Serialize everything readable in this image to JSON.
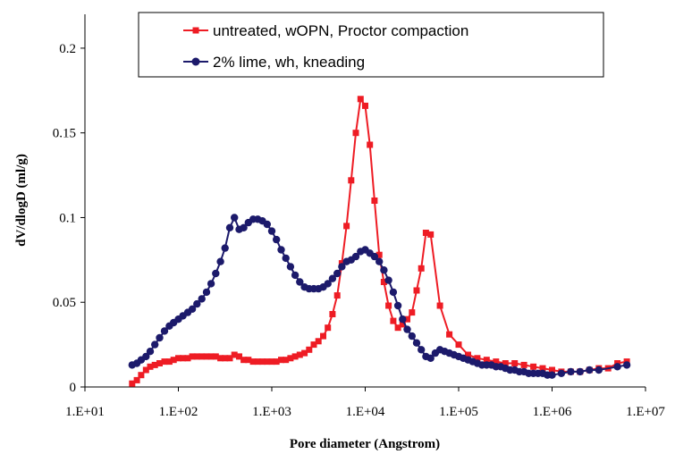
{
  "chart_data": {
    "type": "line",
    "title": "",
    "xlabel": "Pore diameter (Angstrom)",
    "ylabel": "dV/dlogD (ml/g)",
    "x_scale": "log",
    "xlim": [
      10,
      10000000
    ],
    "ylim": [
      0,
      0.22
    ],
    "x_ticks": [
      "1.E+01",
      "1.E+02",
      "1.E+03",
      "1.E+04",
      "1.E+05",
      "1.E+06",
      "1.E+07"
    ],
    "y_ticks": [
      "0",
      "0.05",
      "0.1",
      "0.15",
      "0.2"
    ],
    "y_tick_values": [
      0,
      0.05,
      0.1,
      0.15,
      0.2
    ],
    "grid": false,
    "legend_position": "top-right",
    "series": [
      {
        "name": "untreated, wOPN, Proctor compaction",
        "color": "#ee1c24",
        "marker": "square",
        "points": [
          [
            32,
            0.002
          ],
          [
            36,
            0.004
          ],
          [
            40,
            0.007
          ],
          [
            45,
            0.01
          ],
          [
            50,
            0.012
          ],
          [
            56,
            0.013
          ],
          [
            63,
            0.014
          ],
          [
            71,
            0.015
          ],
          [
            80,
            0.015
          ],
          [
            89,
            0.016
          ],
          [
            100,
            0.017
          ],
          [
            112,
            0.017
          ],
          [
            126,
            0.017
          ],
          [
            141,
            0.018
          ],
          [
            158,
            0.018
          ],
          [
            178,
            0.018
          ],
          [
            200,
            0.018
          ],
          [
            224,
            0.018
          ],
          [
            251,
            0.018
          ],
          [
            282,
            0.017
          ],
          [
            316,
            0.017
          ],
          [
            355,
            0.017
          ],
          [
            398,
            0.019
          ],
          [
            447,
            0.018
          ],
          [
            501,
            0.016
          ],
          [
            562,
            0.016
          ],
          [
            631,
            0.015
          ],
          [
            708,
            0.015
          ],
          [
            794,
            0.015
          ],
          [
            891,
            0.015
          ],
          [
            1000,
            0.015
          ],
          [
            1122,
            0.015
          ],
          [
            1259,
            0.016
          ],
          [
            1413,
            0.016
          ],
          [
            1585,
            0.017
          ],
          [
            1778,
            0.018
          ],
          [
            1995,
            0.019
          ],
          [
            2239,
            0.02
          ],
          [
            2512,
            0.022
          ],
          [
            2818,
            0.025
          ],
          [
            3162,
            0.027
          ],
          [
            3548,
            0.03
          ],
          [
            3981,
            0.035
          ],
          [
            4467,
            0.043
          ],
          [
            5012,
            0.054
          ],
          [
            5623,
            0.073
          ],
          [
            6310,
            0.095
          ],
          [
            7079,
            0.122
          ],
          [
            7943,
            0.15
          ],
          [
            8913,
            0.17
          ],
          [
            10000,
            0.166
          ],
          [
            11220,
            0.143
          ],
          [
            12589,
            0.11
          ],
          [
            14125,
            0.078
          ],
          [
            15849,
            0.062
          ],
          [
            17783,
            0.048
          ],
          [
            19953,
            0.039
          ],
          [
            22387,
            0.035
          ],
          [
            25119,
            0.037
          ],
          [
            28184,
            0.04
          ],
          [
            31623,
            0.044
          ],
          [
            35481,
            0.057
          ],
          [
            39811,
            0.07
          ],
          [
            44668,
            0.091
          ],
          [
            50119,
            0.09
          ],
          [
            63096,
            0.048
          ],
          [
            79433,
            0.031
          ],
          [
            100000,
            0.025
          ],
          [
            125893,
            0.019
          ],
          [
            158489,
            0.017
          ],
          [
            199526,
            0.016
          ],
          [
            251189,
            0.015
          ],
          [
            316228,
            0.014
          ],
          [
            398107,
            0.014
          ],
          [
            501187,
            0.013
          ],
          [
            630957,
            0.012
          ],
          [
            794328,
            0.011
          ],
          [
            1000000,
            0.01
          ],
          [
            1258925,
            0.009
          ],
          [
            1584893,
            0.009
          ],
          [
            1995262,
            0.009
          ],
          [
            2511886,
            0.01
          ],
          [
            3162278,
            0.011
          ],
          [
            3981072,
            0.011
          ],
          [
            5011872,
            0.014
          ],
          [
            6309573,
            0.015
          ]
        ]
      },
      {
        "name": "2% lime, wh, kneading",
        "color": "#1c1a6b",
        "marker": "circle",
        "points": [
          [
            32,
            0.013
          ],
          [
            36,
            0.014
          ],
          [
            40,
            0.016
          ],
          [
            45,
            0.018
          ],
          [
            50,
            0.021
          ],
          [
            56,
            0.025
          ],
          [
            63,
            0.029
          ],
          [
            71,
            0.033
          ],
          [
            80,
            0.036
          ],
          [
            89,
            0.038
          ],
          [
            100,
            0.04
          ],
          [
            112,
            0.042
          ],
          [
            126,
            0.044
          ],
          [
            141,
            0.046
          ],
          [
            158,
            0.049
          ],
          [
            178,
            0.052
          ],
          [
            200,
            0.056
          ],
          [
            224,
            0.061
          ],
          [
            251,
            0.067
          ],
          [
            282,
            0.074
          ],
          [
            316,
            0.082
          ],
          [
            355,
            0.094
          ],
          [
            398,
            0.1
          ],
          [
            447,
            0.093
          ],
          [
            501,
            0.094
          ],
          [
            562,
            0.097
          ],
          [
            631,
            0.099
          ],
          [
            708,
            0.099
          ],
          [
            794,
            0.098
          ],
          [
            891,
            0.096
          ],
          [
            1000,
            0.092
          ],
          [
            1122,
            0.087
          ],
          [
            1259,
            0.081
          ],
          [
            1413,
            0.076
          ],
          [
            1585,
            0.071
          ],
          [
            1778,
            0.066
          ],
          [
            1995,
            0.062
          ],
          [
            2239,
            0.059
          ],
          [
            2512,
            0.058
          ],
          [
            2818,
            0.058
          ],
          [
            3162,
            0.058
          ],
          [
            3548,
            0.059
          ],
          [
            3981,
            0.061
          ],
          [
            4467,
            0.064
          ],
          [
            5012,
            0.067
          ],
          [
            5623,
            0.071
          ],
          [
            6310,
            0.074
          ],
          [
            7079,
            0.075
          ],
          [
            7943,
            0.077
          ],
          [
            8913,
            0.08
          ],
          [
            10000,
            0.081
          ],
          [
            11220,
            0.079
          ],
          [
            12589,
            0.077
          ],
          [
            14125,
            0.074
          ],
          [
            15849,
            0.069
          ],
          [
            17783,
            0.063
          ],
          [
            19953,
            0.056
          ],
          [
            22387,
            0.048
          ],
          [
            25119,
            0.04
          ],
          [
            28184,
            0.034
          ],
          [
            31623,
            0.03
          ],
          [
            35481,
            0.026
          ],
          [
            39811,
            0.022
          ],
          [
            44668,
            0.018
          ],
          [
            50119,
            0.017
          ],
          [
            56234,
            0.02
          ],
          [
            63096,
            0.022
          ],
          [
            70795,
            0.021
          ],
          [
            79433,
            0.02
          ],
          [
            89125,
            0.019
          ],
          [
            100000,
            0.018
          ],
          [
            112202,
            0.017
          ],
          [
            125893,
            0.016
          ],
          [
            141254,
            0.015
          ],
          [
            158489,
            0.014
          ],
          [
            177828,
            0.013
          ],
          [
            199526,
            0.013
          ],
          [
            223872,
            0.013
          ],
          [
            251189,
            0.012
          ],
          [
            281838,
            0.012
          ],
          [
            316228,
            0.011
          ],
          [
            354813,
            0.01
          ],
          [
            398107,
            0.01
          ],
          [
            446684,
            0.009
          ],
          [
            501187,
            0.009
          ],
          [
            562341,
            0.008
          ],
          [
            630957,
            0.008
          ],
          [
            707946,
            0.008
          ],
          [
            794328,
            0.008
          ],
          [
            891251,
            0.007
          ],
          [
            1000000,
            0.007
          ],
          [
            1258925,
            0.008
          ],
          [
            1584893,
            0.009
          ],
          [
            1995262,
            0.009
          ],
          [
            2511886,
            0.01
          ],
          [
            3162278,
            0.01
          ],
          [
            5011872,
            0.012
          ],
          [
            6309573,
            0.013
          ]
        ]
      }
    ]
  }
}
